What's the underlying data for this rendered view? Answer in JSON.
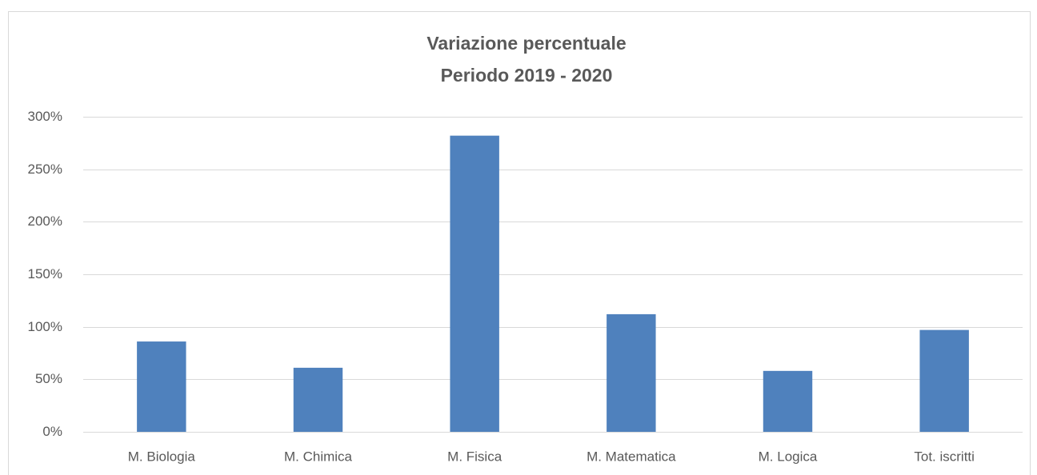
{
  "chart_data": {
    "type": "bar",
    "title": "Variazione percentuale",
    "subtitle": "Periodo 2019 - 2020",
    "categories": [
      "M. Biologia",
      "M. Chimica",
      "M. Fisica",
      "M. Matematica",
      "M. Logica",
      "Tot. iscritti"
    ],
    "values": [
      86,
      61,
      282,
      112,
      58,
      97
    ],
    "color": "#4f81bd",
    "ylim": [
      0,
      300
    ],
    "yticks": [
      {
        "value": 0,
        "label": "0%"
      },
      {
        "value": 50,
        "label": "50%"
      },
      {
        "value": 100,
        "label": "100%"
      },
      {
        "value": 150,
        "label": "150%"
      },
      {
        "value": 200,
        "label": "200%"
      },
      {
        "value": 250,
        "label": "250%"
      },
      {
        "value": 300,
        "label": "300%"
      }
    ],
    "grid": true
  }
}
